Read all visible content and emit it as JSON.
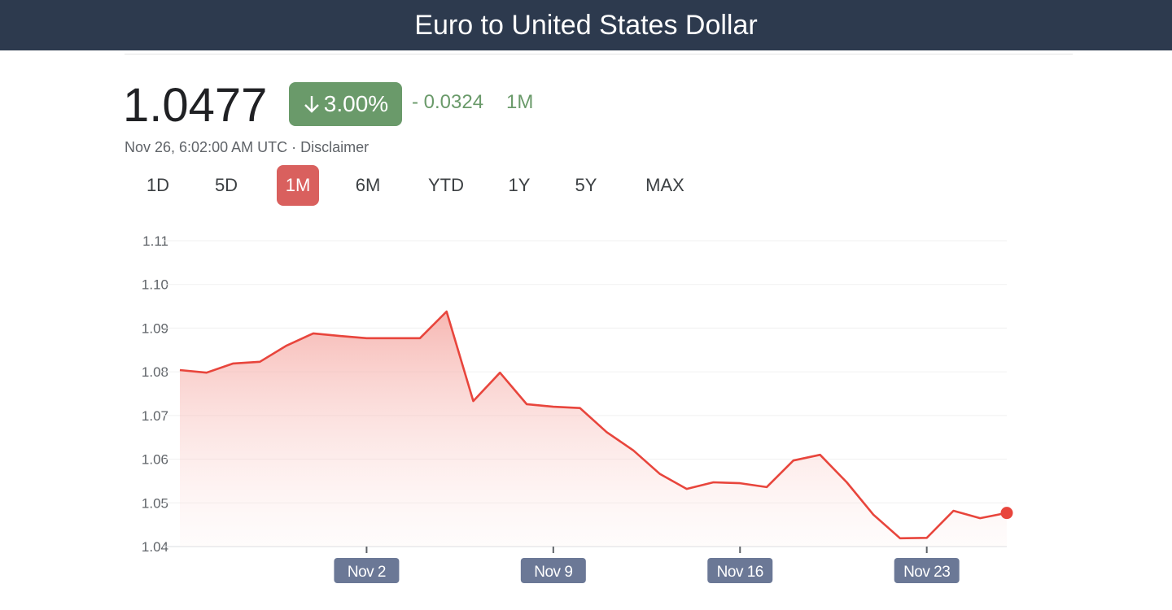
{
  "header": {
    "title": "Euro to United States Dollar"
  },
  "quote": {
    "price": "1.0477",
    "change_pct": "3.00%",
    "change_abs": "- 0.0324",
    "period": "1M",
    "timestamp": "Nov 26, 6:02:00 AM UTC",
    "separator": "·",
    "disclaimer": "Disclaimer"
  },
  "ranges": {
    "options": [
      "1D",
      "5D",
      "1M",
      "6M",
      "YTD",
      "1Y",
      "5Y",
      "MAX"
    ],
    "selected": 2
  },
  "chart_data": {
    "type": "line",
    "categories": [
      null,
      null,
      null,
      null,
      null,
      null,
      null,
      "Nov 2",
      null,
      null,
      null,
      null,
      null,
      null,
      "Nov 9",
      null,
      null,
      null,
      null,
      null,
      null,
      "Nov 16",
      null,
      null,
      null,
      null,
      null,
      null,
      "Nov 23",
      null,
      null,
      null
    ],
    "values": [
      1.0804,
      1.0798,
      1.0819,
      1.0823,
      1.086,
      1.0888,
      1.0882,
      1.0877,
      1.0877,
      1.0877,
      1.0938,
      1.0733,
      1.0798,
      1.0726,
      1.072,
      1.0717,
      1.0662,
      1.062,
      1.0566,
      1.0532,
      1.0547,
      1.0545,
      1.0536,
      1.0597,
      1.061,
      1.0547,
      1.0473,
      1.0419,
      1.042,
      1.0482,
      1.0465,
      1.0477
    ],
    "color": "#e8453c",
    "ylim": [
      1.04,
      1.11
    ],
    "yticks": [
      1.04,
      1.05,
      1.06,
      1.07,
      1.08,
      1.09,
      {
        "value": 1.1,
        "label": "1.10"
      },
      1.11
    ],
    "grid": true
  }
}
